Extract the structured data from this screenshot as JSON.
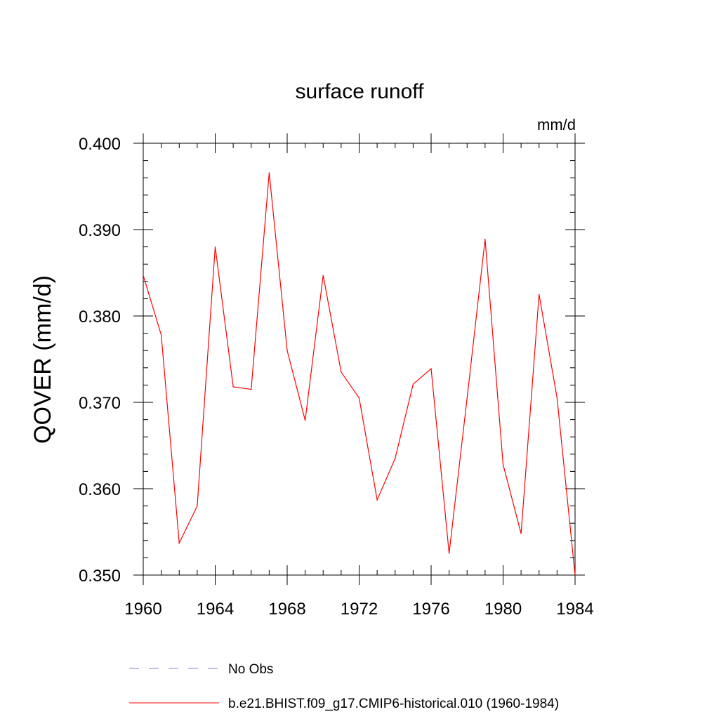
{
  "chart_data": {
    "type": "line",
    "title": "surface runoff",
    "units": "mm/d",
    "ylabel": "QOVER  (mm/d)",
    "xlabel": "",
    "xlim": [
      1960,
      1984
    ],
    "ylim": [
      0.35,
      0.4
    ],
    "x_ticks": [
      "1960",
      "1964",
      "1968",
      "1972",
      "1976",
      "1980",
      "1984"
    ],
    "y_ticks": [
      "0.400",
      "0.390",
      "0.380",
      "0.370",
      "0.360",
      "0.350"
    ],
    "grid": false,
    "series": [
      {
        "name": "b.e21.BHIST.f09_g17.CMIP6-historical.010 (1960-1984)",
        "color": "#ff0000",
        "x": [
          1960,
          1961,
          1962,
          1963,
          1964,
          1965,
          1966,
          1967,
          1968,
          1969,
          1970,
          1971,
          1972,
          1973,
          1974,
          1975,
          1976,
          1977,
          1978,
          1979,
          1980,
          1981,
          1982,
          1983,
          1984
        ],
        "values": [
          0.3847,
          0.3778,
          0.3537,
          0.358,
          0.388,
          0.3718,
          0.3715,
          0.3966,
          0.376,
          0.3679,
          0.3847,
          0.3735,
          0.3705,
          0.3587,
          0.3635,
          0.3721,
          0.3739,
          0.3525,
          0.3705,
          0.3889,
          0.3628,
          0.3548,
          0.3825,
          0.3705,
          0.35
        ]
      }
    ],
    "legend": {
      "placement": "bottom",
      "entries": [
        {
          "label": "No Obs",
          "color": "#8080c0",
          "style": "dashed"
        },
        {
          "label": "b.e21.BHIST.f09_g17.CMIP6-historical.010 (1960-1984)",
          "color": "#ff0000",
          "style": "solid"
        }
      ]
    }
  }
}
